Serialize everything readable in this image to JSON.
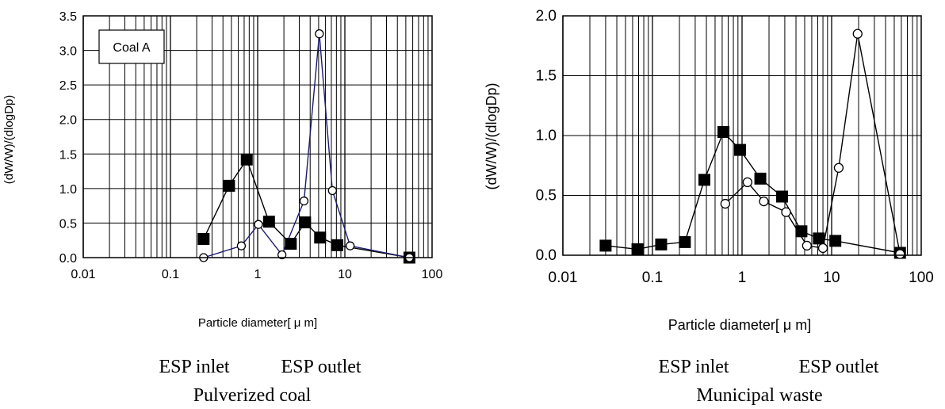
{
  "chart_data": [
    {
      "type": "line",
      "title": "",
      "xlabel": "Particle diameter[ μ m]",
      "ylabel": "(dW/W)/(dlogDp)",
      "x_scale": "log",
      "xlim": [
        0.01,
        100
      ],
      "ylim": [
        0,
        3.5
      ],
      "x_ticks": [
        "0.01",
        "0.1",
        "1",
        "10",
        "100"
      ],
      "y_ticks": [
        "0.0",
        "0.5",
        "1.0",
        "1.5",
        "2.0",
        "2.5",
        "3.0",
        "3.5"
      ],
      "grid": true,
      "annotation": "Coal A",
      "caption_line1_left": "ESP inlet",
      "caption_line1_right": "ESP outlet",
      "caption_line2": "Pulverized coal",
      "series": [
        {
          "marker": "filled-square",
          "color": "#000000",
          "x": [
            0.24,
            0.47,
            0.75,
            1.35,
            2.4,
            3.5,
            5.2,
            8.2,
            55
          ],
          "y": [
            0.27,
            1.04,
            1.42,
            0.52,
            0.2,
            0.51,
            0.29,
            0.18,
            0.0
          ]
        },
        {
          "marker": "open-circle",
          "color": "#1a1a6e",
          "x": [
            0.24,
            0.65,
            1.02,
            1.9,
            3.4,
            5.1,
            7.2,
            11.5,
            55
          ],
          "y": [
            0.0,
            0.17,
            0.48,
            0.04,
            0.82,
            3.24,
            0.97,
            0.17,
            0.0
          ]
        }
      ]
    },
    {
      "type": "line",
      "title": "",
      "xlabel": "Particle diameter[ μ m]",
      "ylabel": "(dW/W)/(dlogDp)",
      "x_scale": "log",
      "xlim": [
        0.01,
        100
      ],
      "ylim": [
        0,
        2.0
      ],
      "x_ticks": [
        "0.01",
        "0.1",
        "1",
        "10",
        "100"
      ],
      "y_ticks": [
        "0.0",
        "0.5",
        "1.0",
        "1.5",
        "2.0"
      ],
      "grid": true,
      "caption_line1_left": "ESP inlet",
      "caption_line1_right": "ESP outlet",
      "caption_line2": "Municipal waste",
      "series": [
        {
          "marker": "filled-square",
          "color": "#000000",
          "x": [
            0.03,
            0.068,
            0.125,
            0.23,
            0.38,
            0.62,
            0.95,
            1.6,
            2.8,
            4.6,
            7.2,
            11,
            58
          ],
          "y": [
            0.08,
            0.05,
            0.09,
            0.11,
            0.63,
            1.03,
            0.88,
            0.64,
            0.49,
            0.2,
            0.14,
            0.12,
            0.02
          ]
        },
        {
          "marker": "open-circle",
          "color": "#000000",
          "x": [
            0.65,
            1.15,
            1.75,
            3.1,
            5.3,
            8.0,
            12,
            19.5,
            58
          ],
          "y": [
            0.43,
            0.61,
            0.45,
            0.36,
            0.08,
            0.06,
            0.73,
            1.85,
            0.01
          ]
        }
      ]
    }
  ]
}
